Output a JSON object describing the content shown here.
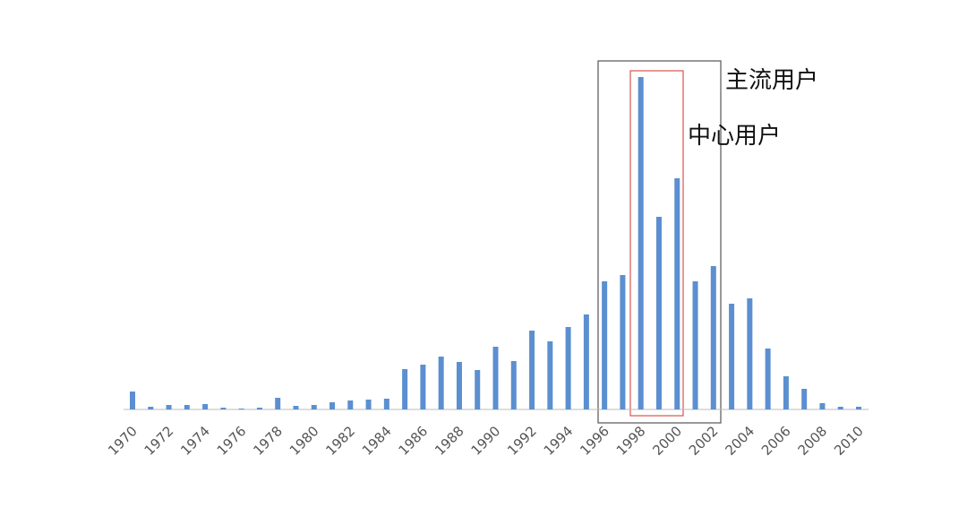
{
  "chart_data": {
    "type": "bar",
    "categories": [
      "1970",
      null,
      "1972",
      null,
      "1974",
      null,
      "1976",
      null,
      "1978",
      null,
      "1980",
      null,
      "1982",
      null,
      "1984",
      null,
      "1986",
      null,
      "1988",
      null,
      "1990",
      null,
      "1992",
      null,
      "1994",
      null,
      "1996",
      null,
      "1998",
      null,
      "2000",
      null,
      "2002",
      null,
      "2004",
      null,
      "2006",
      null,
      "2008",
      null,
      "2010"
    ],
    "values": [
      20,
      3,
      5,
      5,
      6,
      2,
      1,
      2,
      13,
      4,
      5,
      8,
      10,
      11,
      12,
      45,
      50,
      59,
      53,
      44,
      70,
      54,
      88,
      76,
      92,
      106,
      143,
      150,
      371,
      215,
      258,
      143,
      160,
      118,
      124,
      68,
      37,
      23,
      7,
      3,
      3
    ],
    "color": "#5b8fd0",
    "annotations": [
      "主流用户",
      "中心用户"
    ]
  }
}
